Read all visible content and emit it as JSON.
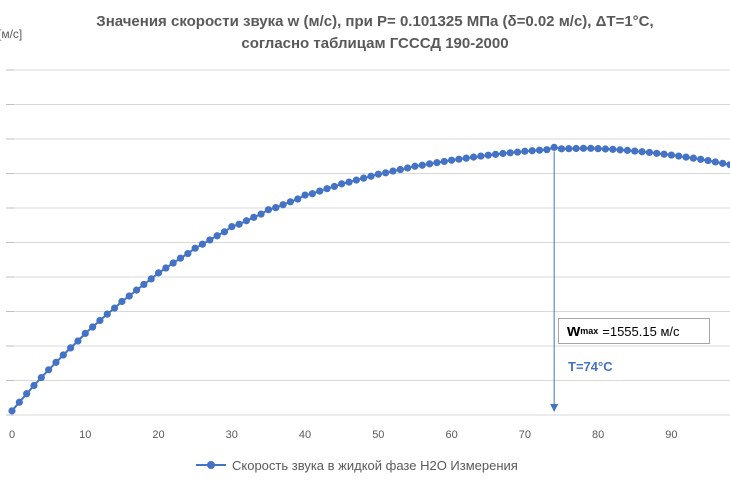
{
  "chart_data": {
    "type": "scatter",
    "title_line1": "Значения скорости звука w (м/с), при P= 0.101325 МПа (δ=0.02 м/с), ΔT=1°C,",
    "title_line2": "согласно таблицам ГСССД 190-2000",
    "ylabel": "[м/с]",
    "x_ticks": [
      "0",
      "10",
      "20",
      "30",
      "40",
      "50",
      "60",
      "70",
      "80",
      "90"
    ],
    "xlim": [
      0,
      98
    ],
    "ylim": [
      1400,
      1600
    ],
    "grid": true,
    "legend_position": "bottom",
    "series": [
      {
        "name": "Скорость звука в жидкой фазе H2O Измерения",
        "x": [
          0,
          1,
          2,
          3,
          4,
          5,
          6,
          7,
          8,
          9,
          10,
          11,
          12,
          13,
          14,
          15,
          16,
          17,
          18,
          19,
          20,
          21,
          22,
          23,
          24,
          25,
          26,
          27,
          28,
          29,
          30,
          31,
          32,
          33,
          34,
          35,
          36,
          37,
          38,
          39,
          40,
          41,
          42,
          43,
          44,
          45,
          46,
          47,
          48,
          49,
          50,
          51,
          52,
          53,
          54,
          55,
          56,
          57,
          58,
          59,
          60,
          61,
          62,
          63,
          64,
          65,
          66,
          67,
          68,
          69,
          70,
          71,
          72,
          73,
          74,
          75,
          76,
          77,
          78,
          79,
          80,
          81,
          82,
          83,
          84,
          85,
          86,
          87,
          88,
          89,
          90,
          91,
          92,
          93,
          94,
          95,
          96,
          97,
          98,
          99
        ],
        "y": [
          1402.4,
          1407.4,
          1412.3,
          1417.1,
          1421.7,
          1426.2,
          1430.5,
          1434.8,
          1438.9,
          1442.9,
          1447.3,
          1451.0,
          1454.8,
          1458.5,
          1462.0,
          1465.8,
          1469.0,
          1472.4,
          1475.7,
          1478.9,
          1482.4,
          1485.2,
          1488.1,
          1490.9,
          1493.6,
          1496.7,
          1499.0,
          1501.5,
          1503.9,
          1506.2,
          1509.2,
          1510.6,
          1512.6,
          1514.6,
          1516.5,
          1519.0,
          1520.2,
          1521.9,
          1523.6,
          1525.2,
          1527.5,
          1528.3,
          1529.8,
          1531.2,
          1532.5,
          1534.0,
          1535.0,
          1536.2,
          1537.3,
          1538.4,
          1539.6,
          1540.4,
          1541.4,
          1542.3,
          1543.2,
          1544.2,
          1544.8,
          1545.6,
          1546.3,
          1547.0,
          1547.7,
          1548.3,
          1548.9,
          1549.5,
          1550.1,
          1550.6,
          1551.1,
          1551.6,
          1552.0,
          1552.4,
          1552.9,
          1553.2,
          1553.5,
          1553.8,
          1555.15,
          1554.3,
          1554.4,
          1554.5,
          1554.6,
          1554.6,
          1554.4,
          1554.2,
          1554.0,
          1553.7,
          1553.4,
          1553.0,
          1552.6,
          1552.2,
          1551.7,
          1551.2,
          1550.7,
          1550.1,
          1549.5,
          1548.9,
          1548.2,
          1547.5,
          1546.7,
          1545.9,
          1545.1,
          1544.2
        ]
      }
    ],
    "annotations": {
      "wmax_symbol": "w",
      "wmax_sub": "max",
      "wmax_value": "=1555.15 м/с",
      "tmax_label": "T=74°C",
      "tmax_x": 74
    },
    "colors": {
      "series": "#4472c4",
      "grid": "#d9d9d9",
      "text": "#595959"
    }
  }
}
